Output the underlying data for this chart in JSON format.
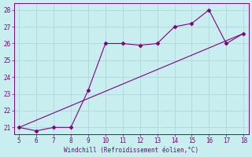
{
  "x": [
    5,
    6,
    7,
    8,
    9,
    10,
    11,
    12,
    13,
    14,
    15,
    16,
    17,
    18
  ],
  "y": [
    21.0,
    20.8,
    21.0,
    21.0,
    23.2,
    26.0,
    26.0,
    25.9,
    26.0,
    27.0,
    27.2,
    28.0,
    26.0,
    26.6
  ],
  "line2_x": [
    5,
    18
  ],
  "line2_y": [
    21.0,
    26.6
  ],
  "line_color": "#800080",
  "marker_color": "#800080",
  "bg_color": "#c8eef0",
  "grid_color": "#aad4d8",
  "xlabel": "Windchill (Refroidissement éolien,°C)",
  "xlabel_color": "#800080",
  "tick_color": "#800080",
  "xlim": [
    4.7,
    18.3
  ],
  "ylim": [
    20.6,
    28.4
  ],
  "yticks": [
    21,
    22,
    23,
    24,
    25,
    26,
    27,
    28
  ],
  "xticks": [
    5,
    6,
    7,
    8,
    9,
    10,
    11,
    12,
    13,
    14,
    15,
    16,
    17,
    18
  ],
  "spine_color": "#800080"
}
